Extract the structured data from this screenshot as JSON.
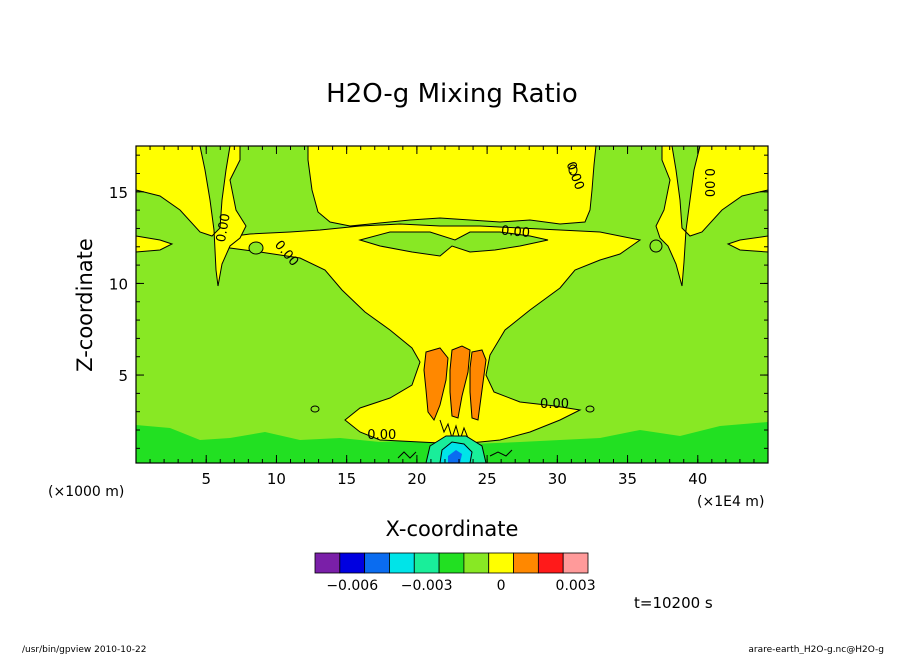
{
  "chart_data": {
    "type": "contour",
    "title": "H2O-g Mixing Ratio",
    "xlabel": "X-coordinate",
    "ylabel": "Z-coordinate",
    "x_unit_left": "(×1000 m)",
    "x_unit_right": "(×1E4 m)",
    "xlim": [
      0,
      45
    ],
    "ylim": [
      0.2,
      17.5
    ],
    "x_ticks": [
      5,
      10,
      15,
      20,
      25,
      30,
      35,
      40
    ],
    "y_ticks": [
      5,
      10,
      15
    ],
    "contour_labels": [
      {
        "text": "0.00",
        "x": 6.5,
        "y": 13.0,
        "rotate": -80
      },
      {
        "text": "0.00",
        "x": 10.5,
        "y": 11.5,
        "rotate": 50
      },
      {
        "text": "0.00",
        "x": 27.0,
        "y": 12.6,
        "rotate": 5
      },
      {
        "text": "0.00",
        "x": 31.0,
        "y": 15.8,
        "rotate": 70
      },
      {
        "text": "0.00",
        "x": 40.5,
        "y": 15.5,
        "rotate": 90
      },
      {
        "text": "0.00",
        "x": 29.8,
        "y": 3.2,
        "rotate": 0
      },
      {
        "text": "0.00",
        "x": 17.5,
        "y": 1.5,
        "rotate": 0
      }
    ],
    "colorbar": {
      "colors": [
        "#7a1fa8",
        "#0000e0",
        "#0a6cf0",
        "#00e4e8",
        "#19ee9a",
        "#22e022",
        "#88e824",
        "#ffff00",
        "#ff8800",
        "#ff1a1a",
        "#ff9a9a"
      ],
      "tick_labels": [
        "−0.006",
        "−0.003",
        "0",
        "0.003"
      ],
      "tick_positions": [
        -0.006,
        -0.003,
        0,
        0.003
      ],
      "range": [
        -0.0075,
        0.0035
      ]
    },
    "time_label": "t=10200 s",
    "footer_left": "/usr/bin/gpview  2010-10-22",
    "footer_right": "arare-earth_H2O-g.nc@H2O-g"
  }
}
